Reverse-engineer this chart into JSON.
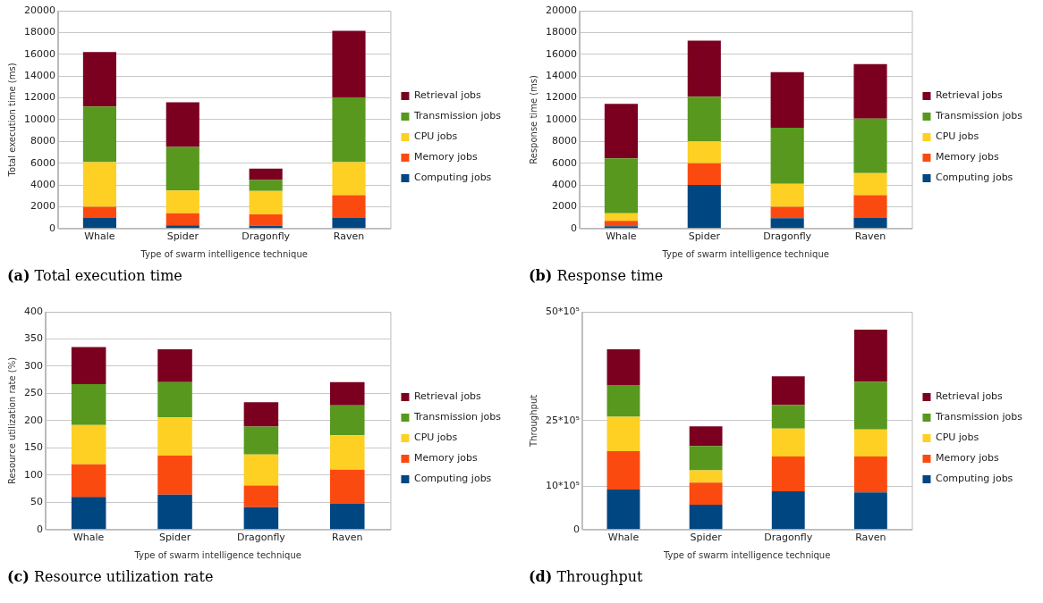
{
  "chart_data": [
    {
      "type": "bar",
      "title": "(a) Total execution time",
      "xlabel": "Type of swarm intelligence technique",
      "ylabel": "Total execution time (ms)",
      "categories": [
        "Whale",
        "Spider",
        "Dragonfly",
        "Raven"
      ],
      "stacked": true,
      "grid": "y",
      "legend": "right",
      "ylim": [
        0,
        20000
      ],
      "yticks": [
        0,
        2000,
        4000,
        6000,
        8000,
        10000,
        12000,
        14000,
        16000,
        18000,
        20000
      ],
      "series": [
        {
          "name": "Computing jobs",
          "color": "#004680",
          "values": [
            1000,
            300,
            250,
            1000
          ]
        },
        {
          "name": "Memory jobs",
          "color": "#fb4a10",
          "values": [
            1000,
            1100,
            1050,
            2050
          ]
        },
        {
          "name": "CPU jobs",
          "color": "#fdd023",
          "values": [
            4100,
            2100,
            2150,
            3050
          ]
        },
        {
          "name": "Transmission jobs",
          "color": "#58981e",
          "values": [
            5100,
            4000,
            1000,
            5950
          ]
        },
        {
          "name": "Retrieval jobs",
          "color": "#7b0020",
          "values": [
            5000,
            4100,
            1050,
            6100
          ]
        }
      ]
    },
    {
      "type": "bar",
      "title": "(b) Response time",
      "xlabel": "Type of swarm intelligence technique",
      "ylabel": "Response time (ms)",
      "categories": [
        "Whale",
        "Spider",
        "Dragonfly",
        "Raven"
      ],
      "stacked": true,
      "grid": "y",
      "legend": "right",
      "ylim": [
        0,
        20000
      ],
      "yticks": [
        0,
        2000,
        4000,
        6000,
        8000,
        10000,
        12000,
        14000,
        16000,
        18000,
        20000
      ],
      "series": [
        {
          "name": "Computing jobs",
          "color": "#004680",
          "values": [
            200,
            4000,
            950,
            1000
          ]
        },
        {
          "name": "Memory jobs",
          "color": "#fb4a10",
          "values": [
            500,
            2000,
            1050,
            2050
          ]
        },
        {
          "name": "CPU jobs",
          "color": "#fdd023",
          "values": [
            700,
            2000,
            2100,
            2050
          ]
        },
        {
          "name": "Transmission jobs",
          "color": "#58981e",
          "values": [
            5050,
            4100,
            5150,
            5000
          ]
        },
        {
          "name": "Retrieval jobs",
          "color": "#7b0020",
          "values": [
            5000,
            5150,
            5100,
            5000
          ]
        }
      ]
    },
    {
      "type": "bar",
      "title": "(c) Resource utilization rate",
      "xlabel": "Type of swarm intelligence technique",
      "ylabel": "Resource utilization rate (%)",
      "categories": [
        "Whale",
        "Spider",
        "Dragonfly",
        "Raven"
      ],
      "stacked": true,
      "grid": "y",
      "legend": "right",
      "ylim": [
        0,
        400
      ],
      "yticks": [
        0,
        50,
        100,
        150,
        200,
        250,
        300,
        350,
        400
      ],
      "series": [
        {
          "name": "Computing jobs",
          "color": "#004680",
          "values": [
            60,
            64,
            41,
            48
          ]
        },
        {
          "name": "Memory jobs",
          "color": "#fb4a10",
          "values": [
            60,
            72,
            40,
            62
          ]
        },
        {
          "name": "CPU jobs",
          "color": "#fdd023",
          "values": [
            72,
            70,
            57,
            63
          ]
        },
        {
          "name": "Transmission jobs",
          "color": "#58981e",
          "values": [
            75,
            65,
            51,
            55
          ]
        },
        {
          "name": "Retrieval jobs",
          "color": "#7b0020",
          "values": [
            68,
            60,
            45,
            43
          ]
        }
      ]
    },
    {
      "type": "bar",
      "title": "(d) Throughput",
      "xlabel": "Type of swarm intelligence technique",
      "ylabel": "Throughput",
      "categories": [
        "Whale",
        "Spider",
        "Dragonfly",
        "Raven"
      ],
      "stacked": true,
      "grid": "y",
      "legend": "right",
      "ylim": [
        0,
        5000000
      ],
      "yticks": [
        0,
        {
          "value": 1000000,
          "label": "10*10⁵"
        },
        {
          "value": 2500000,
          "label": "25*10⁵"
        },
        {
          "value": 5000000,
          "label": "50*10⁵"
        }
      ],
      "series": [
        {
          "name": "Computing jobs",
          "color": "#004680",
          "values": [
            920000,
            570000,
            880000,
            850000
          ]
        },
        {
          "name": "Memory jobs",
          "color": "#fb4a10",
          "values": [
            880000,
            510000,
            800000,
            830000
          ]
        },
        {
          "name": "CPU jobs",
          "color": "#fdd023",
          "values": [
            790000,
            280000,
            640000,
            620000
          ]
        },
        {
          "name": "Transmission jobs",
          "color": "#58981e",
          "values": [
            730000,
            560000,
            540000,
            1090000
          ]
        },
        {
          "name": "Retrieval jobs",
          "color": "#7b0020",
          "values": [
            820000,
            450000,
            660000,
            1200000
          ]
        }
      ]
    }
  ]
}
